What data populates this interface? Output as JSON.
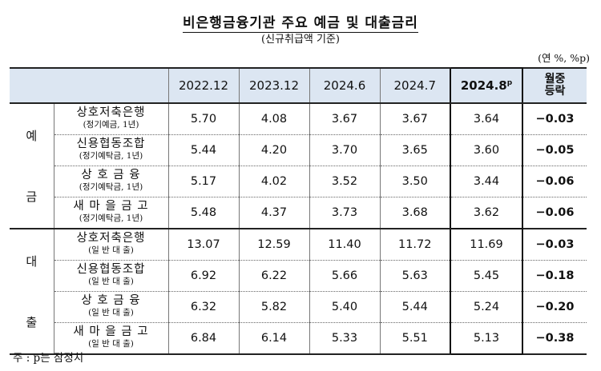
{
  "title": "비은행금융기관 주요 예금 및 대출금리",
  "subtitle": "(신규취급액 기준)",
  "unit": "(연 %, %p)",
  "columns": [
    "2022.12",
    "2023.12",
    "2024.6",
    "2024.7",
    "2024.8",
    "월중"
  ],
  "highlight_suffix": "p",
  "change_header_line2": "등락",
  "groups": [
    {
      "label_top": "예",
      "label_bottom": "금",
      "rows": [
        {
          "name": "상호저축은행",
          "sub": "(정기예금, 1년)",
          "values": [
            "5.70",
            "4.08",
            "3.67",
            "3.67",
            "3.64",
            "−0.03"
          ]
        },
        {
          "name": "신용협동조합",
          "sub": "(정기예탁금, 1년)",
          "values": [
            "5.44",
            "4.20",
            "3.70",
            "3.65",
            "3.60",
            "−0.05"
          ]
        },
        {
          "name": "상 호 금 융",
          "sub": "(정기예탁금, 1년)",
          "values": [
            "5.17",
            "4.02",
            "3.52",
            "3.50",
            "3.44",
            "−0.06"
          ]
        },
        {
          "name": "새 마 을 금 고",
          "sub": "(정기예탁금, 1년)",
          "values": [
            "5.48",
            "4.37",
            "3.73",
            "3.68",
            "3.62",
            "−0.06"
          ]
        }
      ]
    },
    {
      "label_top": "대",
      "label_bottom": "출",
      "rows": [
        {
          "name": "상호저축은행",
          "sub": "(일 반 대 출)",
          "values": [
            "13.07",
            "12.59",
            "11.40",
            "11.72",
            "11.69",
            "−0.03"
          ]
        },
        {
          "name": "신용협동조합",
          "sub": "(일 반 대 출)",
          "values": [
            "6.92",
            "6.22",
            "5.66",
            "5.63",
            "5.45",
            "−0.18"
          ]
        },
        {
          "name": "상 호 금 융",
          "sub": "(일 반 대 출)",
          "values": [
            "6.32",
            "5.82",
            "5.40",
            "5.44",
            "5.24",
            "−0.20"
          ]
        },
        {
          "name": "새 마 을 금 고",
          "sub": "(일 반 대 출)",
          "values": [
            "6.84",
            "6.14",
            "5.33",
            "5.51",
            "5.13",
            "−0.38"
          ]
        }
      ]
    }
  ],
  "note": "주 : p는 잠정치"
}
